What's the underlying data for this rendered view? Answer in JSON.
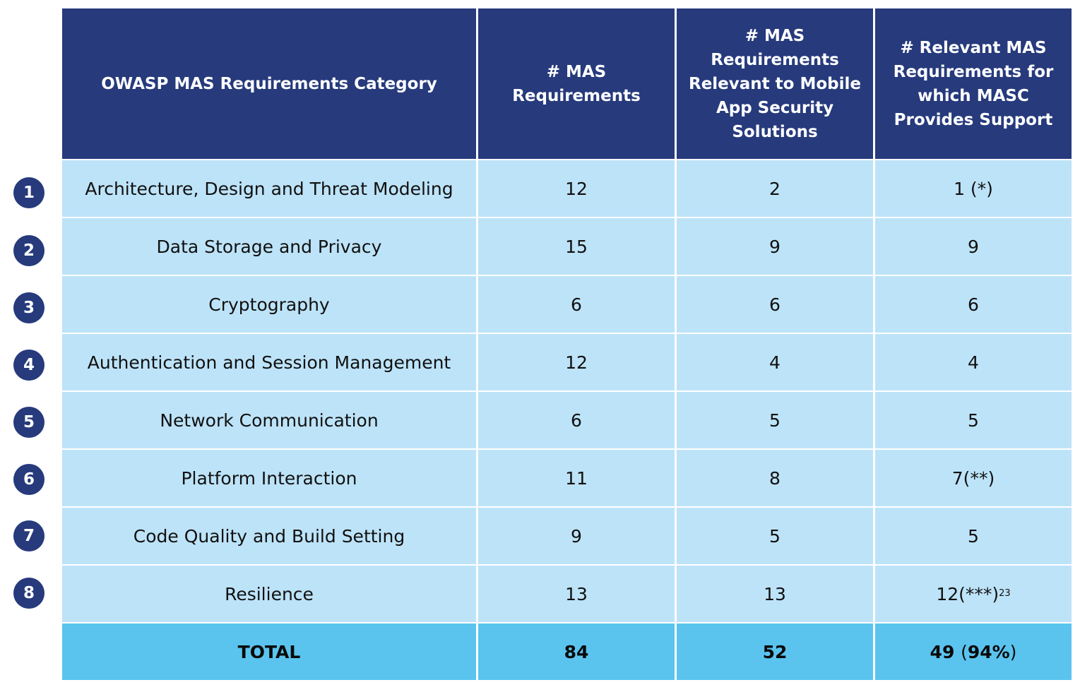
{
  "headers": [
    "OWASP MAS Requirements Category",
    "# MAS Requirements",
    "# MAS Requirements Relevant to Mobile App Security Solutions",
    "# Relevant MAS Requirements for which MASC Provides Support"
  ],
  "rows": [
    {
      "num": "1",
      "category": "Architecture, Design and Threat Modeling",
      "mas": "12",
      "relevant": "2",
      "supported": "1 (*)",
      "supported_sup": ""
    },
    {
      "num": "2",
      "category": "Data Storage and Privacy",
      "mas": "15",
      "relevant": "9",
      "supported": "9",
      "supported_sup": ""
    },
    {
      "num": "3",
      "category": "Cryptography",
      "mas": "6",
      "relevant": "6",
      "supported": "6",
      "supported_sup": ""
    },
    {
      "num": "4",
      "category": "Authentication and Session Management",
      "mas": "12",
      "relevant": "4",
      "supported": "4",
      "supported_sup": ""
    },
    {
      "num": "5",
      "category": "Network Communication",
      "mas": "6",
      "relevant": "5",
      "supported": "5",
      "supported_sup": ""
    },
    {
      "num": "6",
      "category": "Platform Interaction",
      "mas": "11",
      "relevant": "8",
      "supported": "7(**)",
      "supported_sup": ""
    },
    {
      "num": "7",
      "category": "Code Quality and Build Setting",
      "mas": "9",
      "relevant": "5",
      "supported": "5",
      "supported_sup": ""
    },
    {
      "num": "8",
      "category": "Resilience",
      "mas": "13",
      "relevant": "13",
      "supported": "12(***)",
      "supported_sup": "23"
    }
  ],
  "total": {
    "label": "TOTAL",
    "mas": "84",
    "relevant": "52",
    "supported": "49",
    "supported_pct": "94%"
  },
  "colors": {
    "header_bg": "#263a7c",
    "row_bg": "#bde3f8",
    "total_bg": "#5ac4ef",
    "badge_bg": "#263a7c"
  }
}
